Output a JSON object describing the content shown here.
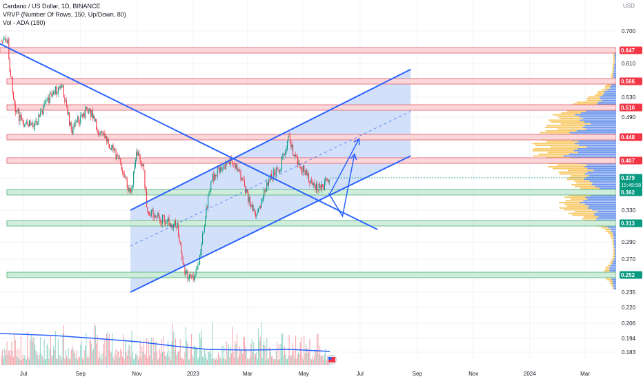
{
  "header": {
    "title_line": "Cardano / US Dollar, 1D, BINANCE",
    "indicator_vrvp": "VRVP (Number Of Rows, 150, Up/Down, 80)",
    "indicator_vol": "Vol - ADA (180)"
  },
  "chart_data": {
    "type": "candlestick",
    "symbol": "Cardano / US Dollar",
    "interval": "1D",
    "exchange": "BINANCE",
    "currency_label": "USD",
    "y_ticks": [
      "0.700",
      "0.610",
      "0.530",
      "0.490",
      "0.448",
      "0.330",
      "0.290",
      "0.270",
      "0.235",
      "0.220",
      "0.206",
      "0.194",
      "0.183"
    ],
    "x_ticks": [
      "Jul",
      "Sep",
      "Nov",
      "2023",
      "Mar",
      "May",
      "Jul",
      "Sep",
      "Nov",
      "2024",
      "Mar"
    ],
    "ylim": [
      0.175,
      0.72
    ],
    "price_labels": [
      {
        "text": "0.647",
        "value": 0.647,
        "color": "#f23645"
      },
      {
        "text": "0.566",
        "value": 0.566,
        "color": "#f23645"
      },
      {
        "text": "0.510",
        "value": 0.51,
        "color": "#f23645"
      },
      {
        "text": "0.448",
        "value": 0.448,
        "color": "#f23645"
      },
      {
        "text": "0.407",
        "value": 0.407,
        "color": "#f23645"
      },
      {
        "text": "0.379",
        "value": 0.379,
        "color": "#089981",
        "countdown": "15:49:58"
      },
      {
        "text": "0.362",
        "value": 0.362,
        "color": "#089981"
      },
      {
        "text": "0.313",
        "value": 0.313,
        "color": "#089981"
      },
      {
        "text": "0.252",
        "value": 0.252,
        "color": "#089981"
      }
    ],
    "resistance_zones": [
      0.647,
      0.566,
      0.51,
      0.448,
      0.407
    ],
    "support_zones": [
      0.362,
      0.313,
      0.252
    ],
    "close_path": [
      [
        "2022-06-15",
        0.62
      ],
      [
        "2022-06-22",
        0.51
      ],
      [
        "2022-07-01",
        0.47
      ],
      [
        "2022-07-15",
        0.48
      ],
      [
        "2022-08-01",
        0.54
      ],
      [
        "2022-08-12",
        0.555
      ],
      [
        "2022-08-22",
        0.46
      ],
      [
        "2022-09-01",
        0.49
      ],
      [
        "2022-09-10",
        0.51
      ],
      [
        "2022-09-20",
        0.46
      ],
      [
        "2022-10-01",
        0.44
      ],
      [
        "2022-10-15",
        0.4
      ],
      [
        "2022-10-25",
        0.355
      ],
      [
        "2022-11-01",
        0.42
      ],
      [
        "2022-11-08",
        0.4
      ],
      [
        "2022-11-12",
        0.33
      ],
      [
        "2022-11-25",
        0.32
      ],
      [
        "2022-12-05",
        0.315
      ],
      [
        "2022-12-15",
        0.31
      ],
      [
        "2022-12-22",
        0.258
      ],
      [
        "2022-12-31",
        0.246
      ],
      [
        "2023-01-08",
        0.27
      ],
      [
        "2023-01-15",
        0.33
      ],
      [
        "2023-01-22",
        0.38
      ],
      [
        "2023-02-01",
        0.395
      ],
      [
        "2023-02-10",
        0.405
      ],
      [
        "2023-02-20",
        0.39
      ],
      [
        "2023-02-28",
        0.36
      ],
      [
        "2023-03-10",
        0.318
      ],
      [
        "2023-03-15",
        0.34
      ],
      [
        "2023-03-25",
        0.38
      ],
      [
        "2023-04-05",
        0.395
      ],
      [
        "2023-04-15",
        0.45
      ],
      [
        "2023-04-22",
        0.41
      ],
      [
        "2023-05-01",
        0.39
      ],
      [
        "2023-05-10",
        0.37
      ],
      [
        "2023-05-20",
        0.365
      ],
      [
        "2023-05-28",
        0.379
      ]
    ],
    "trend_lines": [
      {
        "name": "descending-trendline",
        "from": [
          "2022-06-01",
          0.67
        ],
        "to": [
          "2023-07-20",
          0.305
        ]
      },
      {
        "name": "channel-upper",
        "from": [
          "2022-10-25",
          0.33
        ],
        "to": [
          "2023-08-25",
          0.595
        ]
      },
      {
        "name": "channel-lower",
        "from": [
          "2022-10-25",
          0.235
        ],
        "to": [
          "2023-08-25",
          0.415
        ]
      },
      {
        "name": "channel-mid",
        "from": [
          "2022-10-25",
          0.285
        ],
        "to": [
          "2023-08-25",
          0.502
        ]
      }
    ],
    "projection_arrows": [
      [
        [
          "2023-05-28",
          0.36
        ],
        [
          "2023-06-12",
          0.322
        ],
        [
          "2023-06-25",
          0.418
        ]
      ],
      [
        [
          "2023-05-28",
          0.355
        ],
        [
          "2023-06-30",
          0.445
        ]
      ]
    ],
    "volume_profile": "right-side VRVP histogram, up volume blue, down volume orange",
    "colors": {
      "up": "#089981",
      "down": "#f23645",
      "trend": "#2962ff",
      "channel_fill": "#bbd0f8",
      "resistance_fill": "#fbd7d9",
      "support_fill": "#d0ecdb",
      "vol_ma": "#2962ff",
      "vp_up": "#4f7fe8",
      "vp_down": "#f6b93b"
    }
  }
}
